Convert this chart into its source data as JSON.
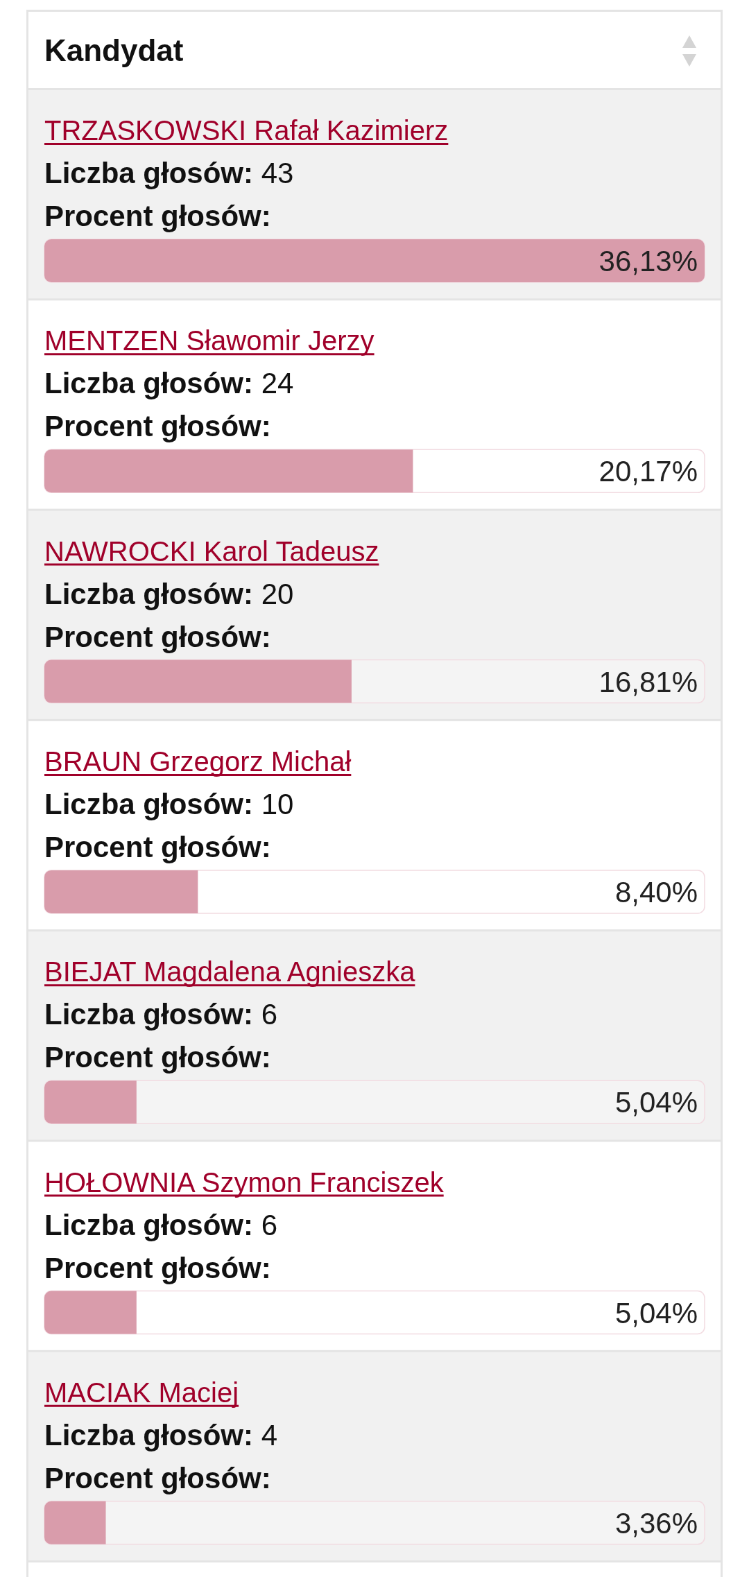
{
  "chart_data": {
    "type": "bar",
    "orientation": "horizontal",
    "ylabel": "Kandydat",
    "categories": [
      "TRZASKOWSKI Rafał Kazimierz",
      "MENTZEN Sławomir Jerzy",
      "NAWROCKI Karol Tadeusz",
      "BRAUN Grzegorz Michał",
      "BIEJAT Magdalena Agnieszka",
      "HOŁOWNIA Szymon Franciszek",
      "MACIAK Maciej"
    ],
    "series": [
      {
        "name": "Procent głosów:",
        "color": "#d99cab",
        "values": [
          36.13,
          20.17,
          16.81,
          8.4,
          5.04,
          5.04,
          3.36
        ],
        "value_labels": [
          "36,13%",
          "20,17%",
          "16,81%",
          "8,40%",
          "5,04%",
          "5,04%",
          "3,36%"
        ]
      }
    ],
    "annotations": [
      "Liczba głosów: 43",
      "Liczba głosów: 24",
      "Liczba głosów: 20",
      "Liczba głosów: 10",
      "Liczba głosów: 6",
      "Liczba głosów: 6",
      "Liczba głosów: 4"
    ]
  }
}
